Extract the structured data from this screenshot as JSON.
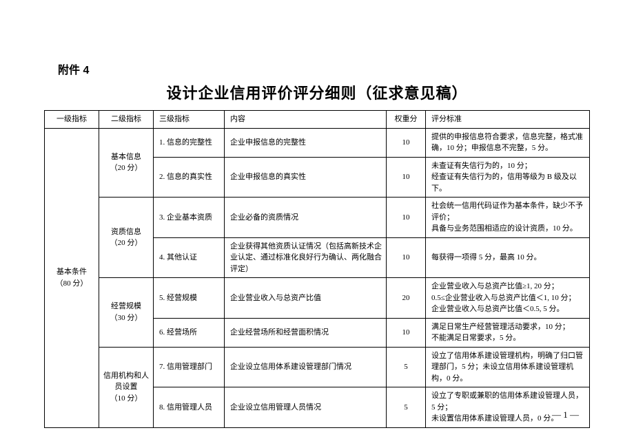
{
  "attachment": "附件 4",
  "title": "设计企业信用评价评分细则（征求意见稿）",
  "headers": {
    "lvl1": "一级指标",
    "lvl2": "二级指标",
    "lvl3": "三级指标",
    "content": "内容",
    "weight": "权重分",
    "criteria": "评分标准"
  },
  "lvl1": {
    "name": "基本条件",
    "score": "（80 分）"
  },
  "groups": [
    {
      "name": "基本信息",
      "score": "（20 分）"
    },
    {
      "name": "资质信息",
      "score": "（20 分）"
    },
    {
      "name": "经营规模",
      "score": "（30 分）"
    },
    {
      "name": "信用机构和人员设置",
      "score": "（10 分）"
    }
  ],
  "rows": [
    {
      "lvl3": "1. 信息的完整性",
      "content": "企业申报信息的完整性",
      "weight": "10",
      "criteria": "提供的申报信息符合要求，信息完整，格式准确，10 分；申报信息不完整，5 分。"
    },
    {
      "lvl3": "2. 信息的真实性",
      "content": "企业申报信息的真实性",
      "weight": "10",
      "criteria": "未查证有失信行为的，10 分；\n经查证有失信行为的，信用等级为 B 级及以下。"
    },
    {
      "lvl3": "3. 企业基本资质",
      "content": "企业必备的资质情况",
      "weight": "10",
      "criteria": "社会统一信用代码证作为基本条件，缺少不予评价；\n具备与业务范围相适应的设计资质，10 分。"
    },
    {
      "lvl3": "4. 其他认证",
      "content": "企业获得其他资质认证情况（包括高新技术企业认定、通过标准化良好行为确认、两化融合评定）",
      "weight": "10",
      "criteria": "每获得一项得 5 分，最高 10 分。"
    },
    {
      "lvl3": "5. 经营规模",
      "content": "企业营业收入与总资产比值",
      "weight": "20",
      "criteria": "企业营业收入与总资产比值≥1, 20 分；\n0.5≤企业营业收入与总资产比值＜1, 10 分；\n企业营业收入与总资产比值＜0.5, 5 分。"
    },
    {
      "lvl3": "6. 经营场所",
      "content": "企业经营场所和经营面积情况",
      "weight": "10",
      "criteria": "满足日常生产经营管理活动要求，10 分；\n不能满足日常要求，5 分。"
    },
    {
      "lvl3": "7. 信用管理部门",
      "content": "企业设立信用体系建设管理部门情况",
      "weight": "5",
      "criteria": "设立了信用体系建设管理机构，明确了归口管理部门，5 分；未设立信用体系建设管理机构，0 分。"
    },
    {
      "lvl3": "8. 信用管理人员",
      "content": "企业设立信用管理人员情况",
      "weight": "5",
      "criteria": "设立了专职或兼职的信用体系建设管理人员，5 分；\n未设置信用体系建设管理人员，0 分。"
    }
  ],
  "pagenum": "— 1 —"
}
